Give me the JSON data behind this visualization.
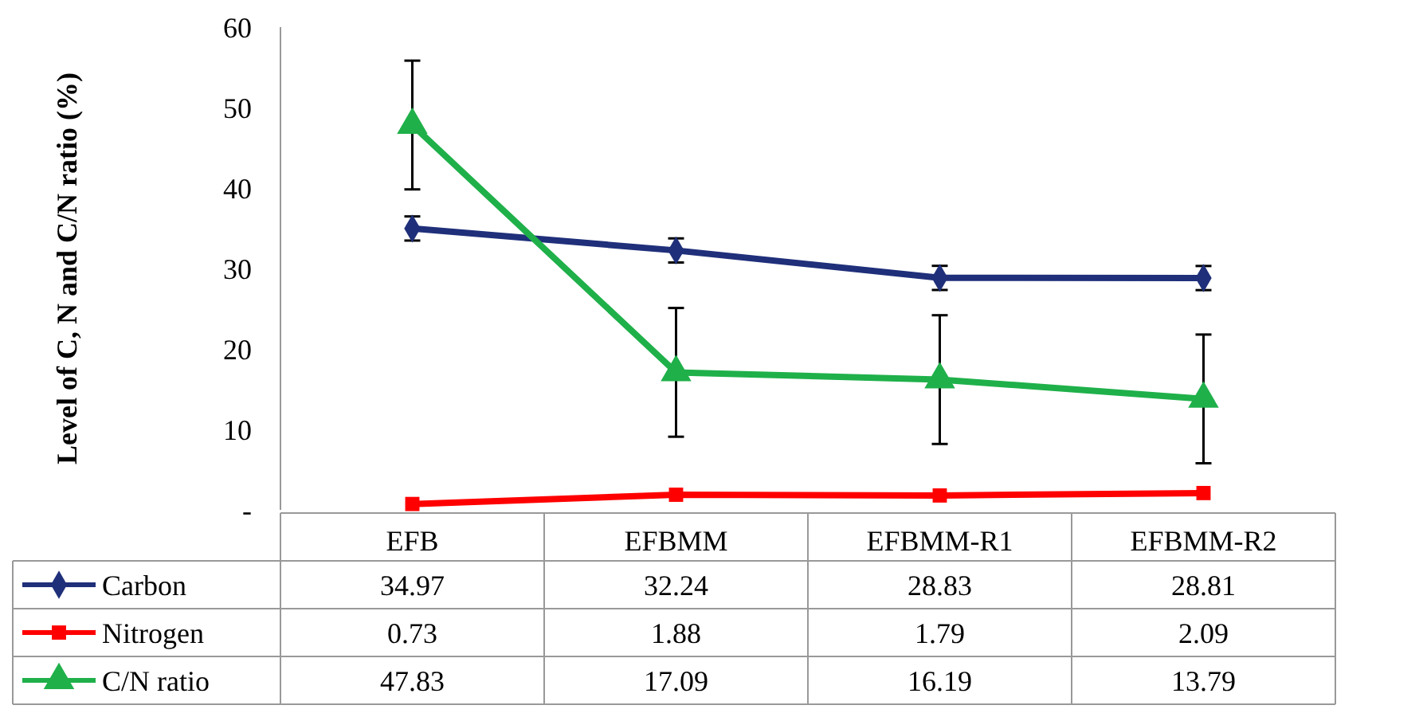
{
  "chart_data": {
    "type": "line",
    "ylabel": "Level of C, N and C/N ratio (%)",
    "categories": [
      "EFB",
      "EFBMM",
      "EFBMM-R1",
      "EFBMM-R2"
    ],
    "series": [
      {
        "name": "Carbon",
        "color": "#1f2f7a",
        "marker": "diamond",
        "values": [
          34.97,
          32.24,
          28.83,
          28.81
        ],
        "errors": [
          1.5,
          1.5,
          1.5,
          1.5
        ]
      },
      {
        "name": "Nitrogen",
        "color": "#ff0000",
        "marker": "square",
        "values": [
          0.73,
          1.88,
          1.79,
          2.09
        ]
      },
      {
        "name": "C/N ratio",
        "color": "#1fb04a",
        "marker": "triangle",
        "values": [
          47.83,
          17.09,
          16.19,
          13.79
        ],
        "errors": [
          8,
          8,
          8,
          8
        ]
      }
    ],
    "ylim": [
      0,
      60
    ],
    "yticks": [
      {
        "value": 0,
        "label": "-"
      },
      10,
      20,
      30,
      40,
      50,
      60
    ],
    "data_labels": true,
    "legend": "bottom",
    "grid": false
  }
}
